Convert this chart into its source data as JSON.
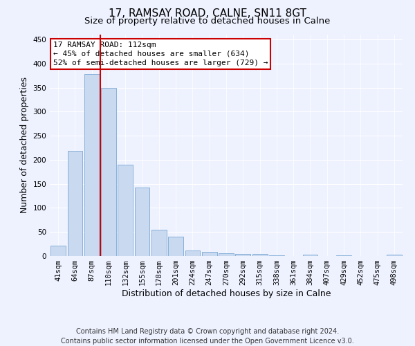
{
  "title": "17, RAMSAY ROAD, CALNE, SN11 8GT",
  "subtitle": "Size of property relative to detached houses in Calne",
  "xlabel": "Distribution of detached houses by size in Calne",
  "ylabel": "Number of detached properties",
  "categories": [
    "41sqm",
    "64sqm",
    "87sqm",
    "110sqm",
    "132sqm",
    "155sqm",
    "178sqm",
    "201sqm",
    "224sqm",
    "247sqm",
    "270sqm",
    "292sqm",
    "315sqm",
    "338sqm",
    "361sqm",
    "384sqm",
    "407sqm",
    "429sqm",
    "452sqm",
    "475sqm",
    "498sqm"
  ],
  "values": [
    21,
    218,
    378,
    350,
    190,
    142,
    54,
    40,
    11,
    8,
    6,
    4,
    4,
    1,
    0,
    3,
    0,
    1,
    0,
    0,
    3
  ],
  "bar_color": "#c9d9f0",
  "bar_edge_color": "#7aa8d4",
  "redline_color": "#cc0000",
  "redline_index": 3,
  "annotation_title": "17 RAMSAY ROAD: 112sqm",
  "annotation_line1": "← 45% of detached houses are smaller (634)",
  "annotation_line2": "52% of semi-detached houses are larger (729) →",
  "annotation_box_facecolor": "#ffffff",
  "annotation_box_edgecolor": "#cc0000",
  "ylim": [
    0,
    460
  ],
  "yticks": [
    0,
    50,
    100,
    150,
    200,
    250,
    300,
    350,
    400,
    450
  ],
  "footer_line1": "Contains HM Land Registry data © Crown copyright and database right 2024.",
  "footer_line2": "Contains public sector information licensed under the Open Government Licence v3.0.",
  "background_color": "#eef2ff",
  "grid_color": "#ffffff",
  "title_fontsize": 11,
  "subtitle_fontsize": 9.5,
  "ylabel_fontsize": 9,
  "xlabel_fontsize": 9,
  "tick_fontsize": 7.5,
  "annotation_fontsize": 8,
  "footer_fontsize": 7
}
